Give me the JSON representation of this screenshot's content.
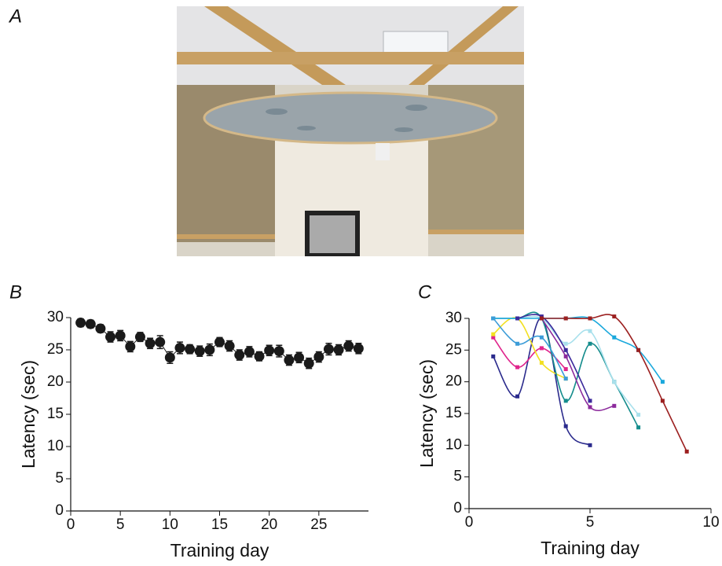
{
  "photo_panel": "A",
  "chart_data": [
    {
      "type": "errorbar",
      "panel": "B",
      "xlabel": "Training day",
      "ylabel": "Latency (sec)",
      "x": [
        1,
        2,
        3,
        4,
        5,
        6,
        7,
        8,
        9,
        10,
        11,
        12,
        13,
        14,
        15,
        16,
        17,
        18,
        19,
        20,
        21,
        22,
        23,
        24,
        25,
        26,
        27,
        28,
        29
      ],
      "values": [
        29.2,
        29,
        28.3,
        27,
        27.2,
        25.5,
        27,
        26,
        26.2,
        23.8,
        25.3,
        25.1,
        24.8,
        25,
        26.2,
        25.6,
        24.2,
        24.7,
        24,
        24.9,
        24.8,
        23.4,
        23.8,
        22.9,
        23.9,
        25.1,
        25,
        25.6,
        25.2
      ],
      "errors": [
        0.6,
        0.6,
        0.6,
        0.8,
        0.8,
        0.8,
        0.7,
        0.8,
        1,
        0.9,
        0.9,
        0.7,
        0.8,
        0.9,
        0.7,
        0.8,
        0.8,
        0.8,
        0.7,
        0.8,
        0.9,
        0.8,
        0.8,
        0.8,
        0.8,
        0.9,
        0.8,
        0.8,
        0.8
      ],
      "color": "#1a1a1a",
      "xlim": [
        0,
        30
      ],
      "xticks": [
        0,
        5,
        10,
        15,
        20,
        25
      ],
      "ylim": [
        0,
        30
      ],
      "yticks": [
        0,
        5,
        10,
        15,
        20,
        25,
        30
      ]
    },
    {
      "type": "line",
      "panel": "C",
      "xlabel": "Training day",
      "ylabel": "Latency (sec)",
      "series": [
        {
          "color": "#2a2a8c",
          "x": [
            1,
            2,
            3,
            4,
            5
          ],
          "values": [
            24,
            17.7,
            30,
            13,
            10
          ]
        },
        {
          "color": "#e0248c",
          "x": [
            1,
            2,
            3,
            4
          ],
          "values": [
            27,
            22.3,
            25.3,
            22
          ]
        },
        {
          "color": "#f2e020",
          "x": [
            1,
            2,
            3,
            4
          ],
          "values": [
            27.5,
            30,
            23,
            20.5
          ]
        },
        {
          "color": "#148c8c",
          "x": [
            1,
            2,
            3,
            4,
            5,
            6,
            7
          ],
          "values": [
            30,
            30,
            30,
            17,
            26,
            20,
            12.8
          ]
        },
        {
          "color": "#8c2a9c",
          "x": [
            3,
            4,
            5,
            6
          ],
          "values": [
            30,
            24,
            16,
            16.2
          ]
        },
        {
          "color": "#a8e0ec",
          "x": [
            1,
            2,
            3,
            4,
            5,
            6,
            7
          ],
          "values": [
            30,
            30,
            30,
            26,
            28,
            20,
            14.8
          ]
        },
        {
          "color": "#1aa8dc",
          "x": [
            1,
            2,
            3,
            4,
            5,
            6,
            7,
            8
          ],
          "values": [
            30,
            30,
            30,
            30,
            30,
            27,
            25,
            20
          ]
        },
        {
          "color": "#3c9cd8",
          "x": [
            1,
            2,
            3,
            4
          ],
          "values": [
            30,
            26,
            27,
            20.5
          ]
        },
        {
          "color": "#3c2a9c",
          "x": [
            2,
            3,
            4,
            5
          ],
          "values": [
            30,
            30.3,
            25,
            17
          ]
        },
        {
          "color": "#9c2020",
          "x": [
            3,
            4,
            5,
            6,
            7,
            8,
            9
          ],
          "values": [
            30,
            30,
            30,
            30.3,
            25,
            17,
            9
          ]
        }
      ],
      "xlim": [
        0,
        10
      ],
      "xticks": [
        0,
        5,
        10
      ],
      "ylim": [
        0,
        30
      ],
      "yticks": [
        0,
        5,
        10,
        15,
        20,
        25,
        30
      ]
    }
  ]
}
